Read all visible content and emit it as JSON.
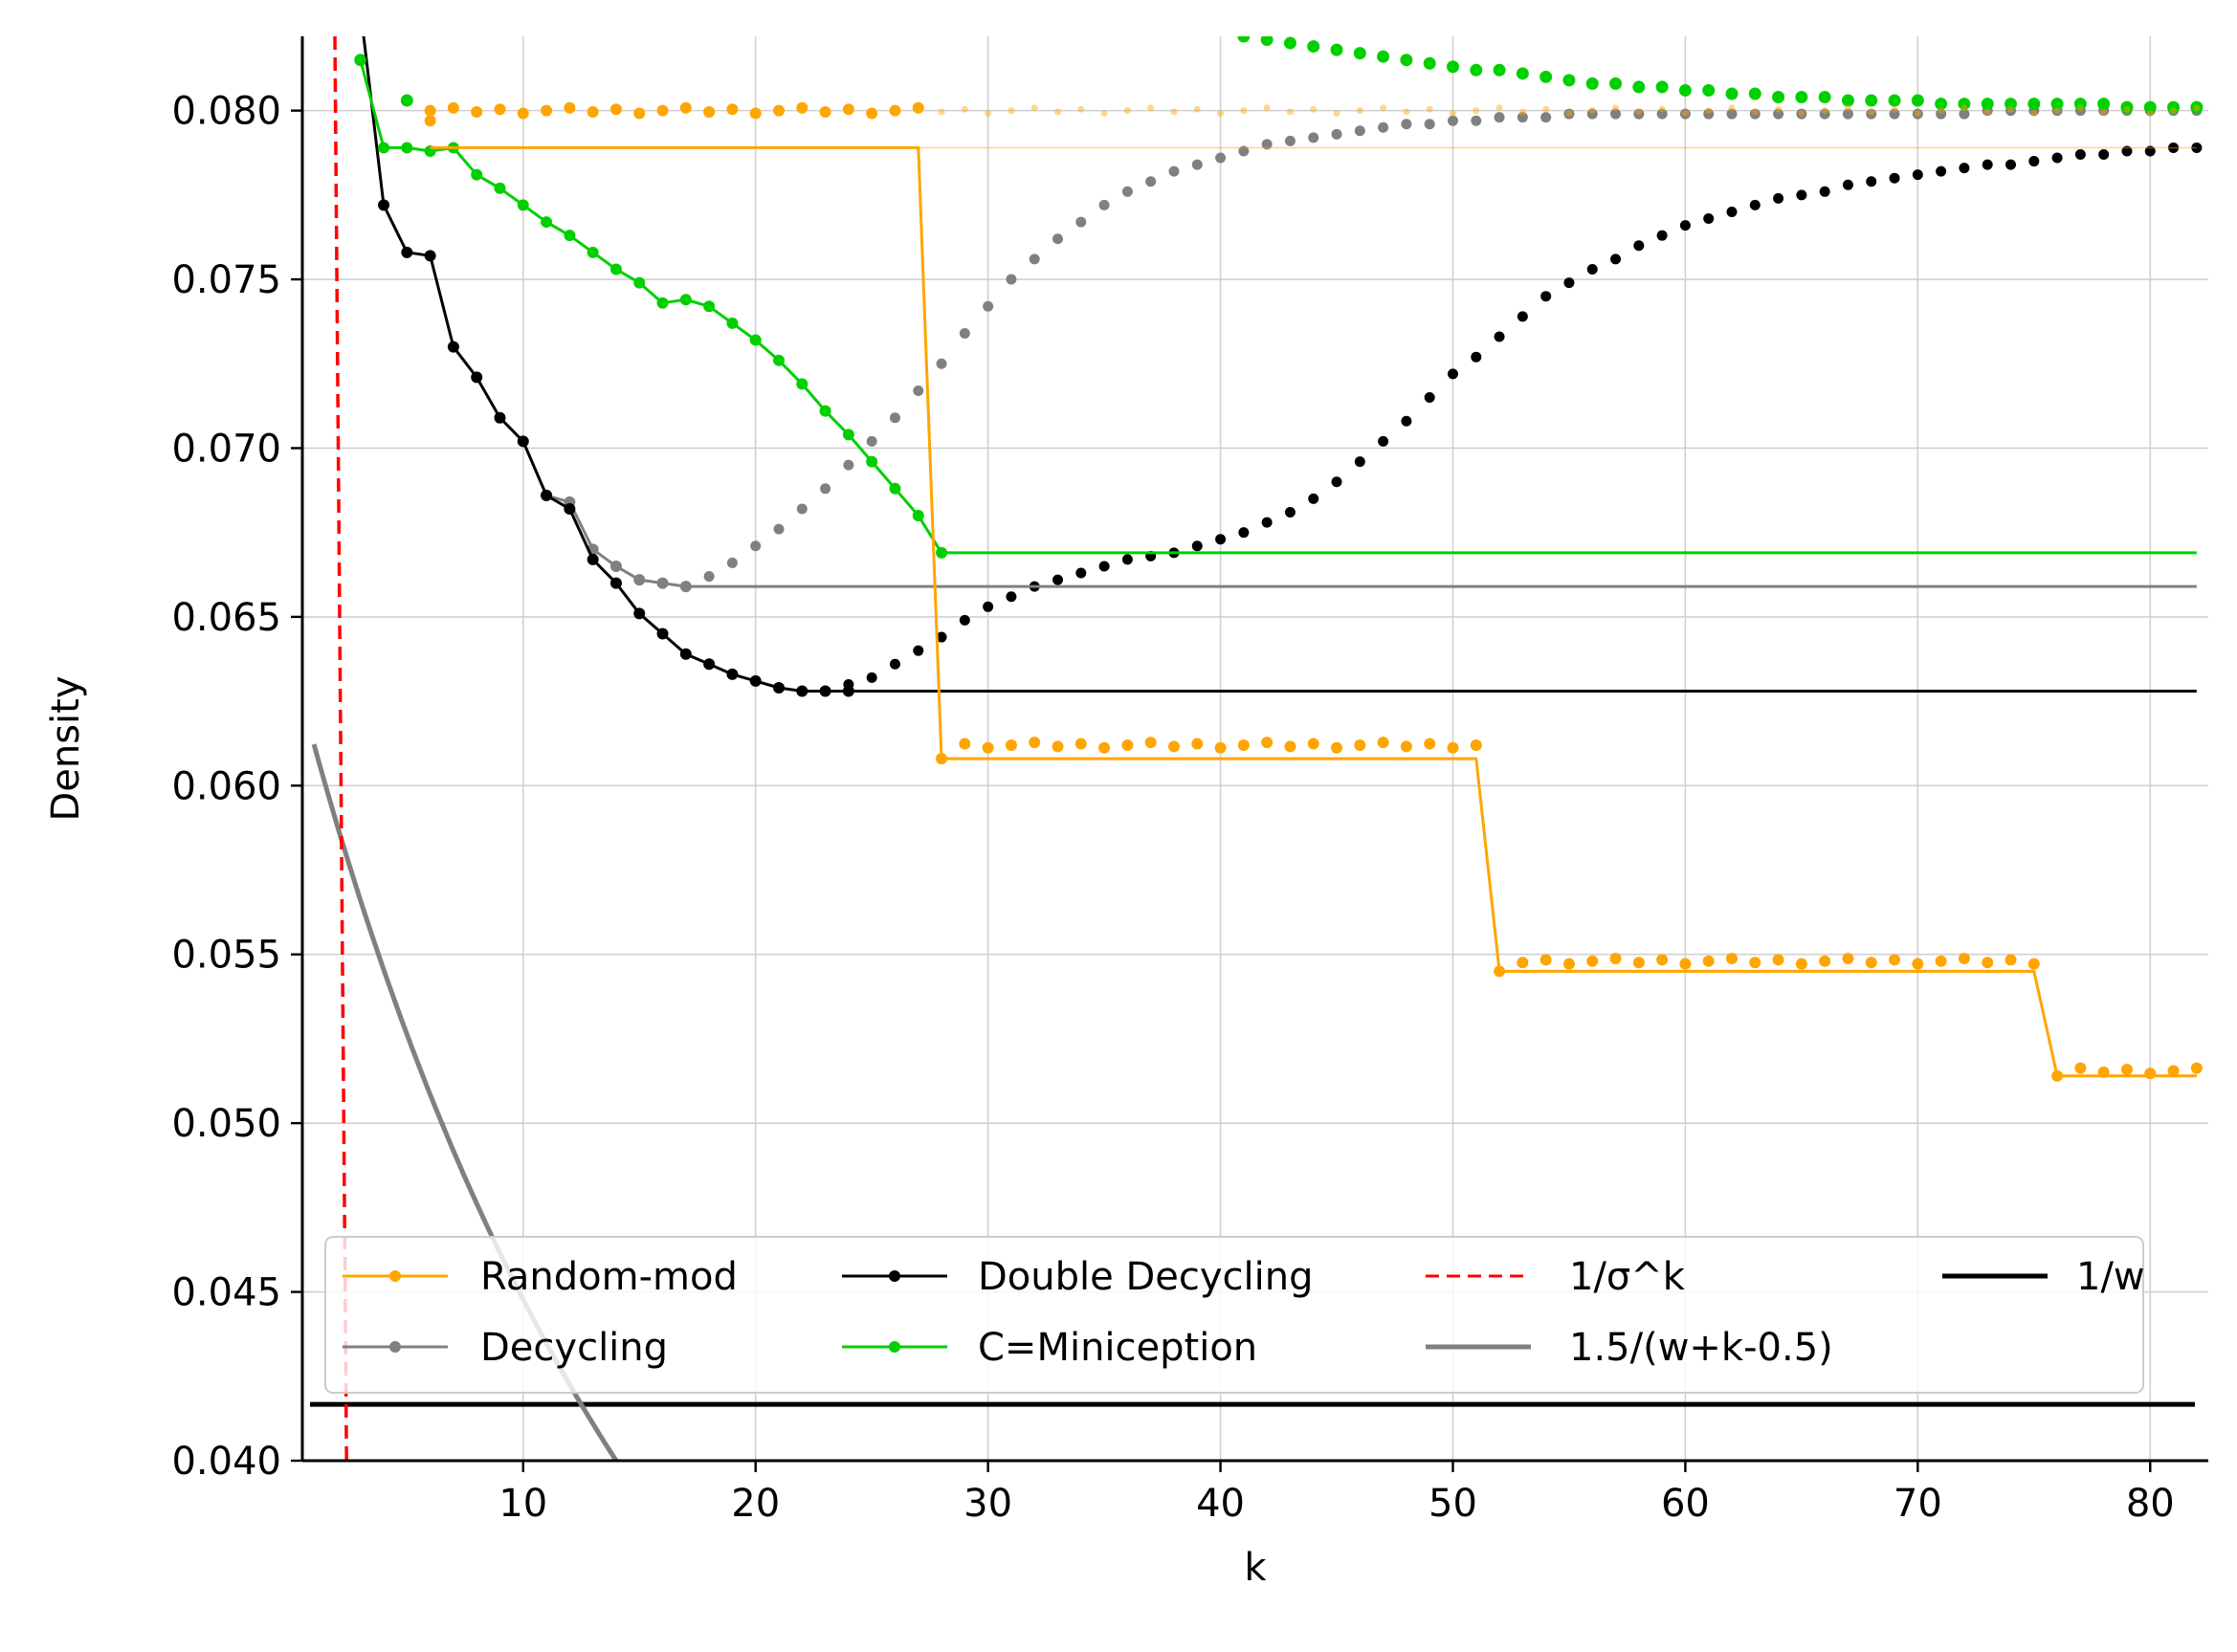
{
  "chart_data": {
    "type": "line",
    "xlabel": "k",
    "ylabel": "Density",
    "xlim": [
      0.5,
      82.5
    ],
    "ylim": [
      0.04,
      0.0822
    ],
    "xticks": [
      10,
      20,
      30,
      40,
      50,
      60,
      70,
      80
    ],
    "yticks": [
      "0.040",
      "0.045",
      "0.050",
      "0.055",
      "0.060",
      "0.065",
      "0.070",
      "0.075",
      "0.080"
    ],
    "grid": true,
    "legend_position": "lower center",
    "legend_columns": 4,
    "colors": {
      "random_mod": "#ffa500",
      "decycling": "#808080",
      "double_decycling": "#000000",
      "miniception": "#00d000",
      "sigma_bound": "#ff0000",
      "approx_bound": "#808080",
      "w_bound": "#000000"
    },
    "series": [
      {
        "name": "Random-mod",
        "key": "random_mod",
        "line_x": [
          6,
          27,
          28,
          51,
          52,
          75,
          76,
          82
        ],
        "line_y": [
          0.0789,
          0.0789,
          0.0608,
          0.0608,
          0.0545,
          0.0545,
          0.0514,
          0.0514
        ],
        "extend_to": 82,
        "points_x": [
          6,
          28,
          52,
          76
        ],
        "points_y": [
          0.0797,
          0.0608,
          0.0545,
          0.0514
        ],
        "dotted_runs": [
          {
            "x_start": 6,
            "x_end": 82,
            "y": 0.08,
            "fade_after": 27
          },
          {
            "x_start": 29,
            "x_end": 51,
            "y": 0.0612
          },
          {
            "x_start": 53,
            "x_end": 75,
            "y": 0.0548
          },
          {
            "x_start": 77,
            "x_end": 82,
            "y": 0.05155
          }
        ]
      },
      {
        "name": "Decycling",
        "key": "decycling",
        "line_x": [
          11,
          12,
          13,
          14,
          15,
          16,
          17
        ],
        "line_y": [
          0.0686,
          0.0684,
          0.067,
          0.0665,
          0.0661,
          0.066,
          0.0659
        ],
        "extend_to": 82,
        "extend_y": 0.0659,
        "dotted_x": [
          5,
          6,
          7,
          8,
          9,
          10,
          11,
          12,
          13,
          14,
          15,
          16,
          17,
          18,
          19,
          20,
          21,
          22,
          23,
          24,
          25,
          26,
          27,
          28,
          29,
          30,
          31,
          32,
          33,
          34,
          35,
          36,
          37,
          38,
          39,
          40,
          41,
          42,
          43,
          44,
          45,
          46,
          47,
          48,
          49,
          50,
          51,
          52,
          53,
          54,
          55,
          56,
          57,
          58,
          59,
          60,
          61,
          62,
          63,
          64,
          65,
          66,
          67,
          68,
          69,
          70,
          71,
          72,
          73,
          74,
          75,
          76,
          77,
          78,
          79,
          80,
          81,
          82
        ],
        "dotted_y": [
          0.0759,
          0.0757,
          0.073,
          0.0721,
          0.0709,
          0.0702,
          0.0686,
          0.0684,
          0.067,
          0.0665,
          0.0661,
          0.066,
          0.0659,
          0.0662,
          0.0666,
          0.0671,
          0.0676,
          0.0682,
          0.0688,
          0.0695,
          0.0702,
          0.0709,
          0.0717,
          0.0725,
          0.0734,
          0.0742,
          0.075,
          0.0756,
          0.0762,
          0.0767,
          0.0772,
          0.0776,
          0.0779,
          0.0782,
          0.0784,
          0.0786,
          0.0788,
          0.079,
          0.0791,
          0.0792,
          0.0793,
          0.0794,
          0.0795,
          0.0796,
          0.0796,
          0.0797,
          0.0797,
          0.0798,
          0.0798,
          0.0798,
          0.0799,
          0.0799,
          0.0799,
          0.0799,
          0.0799,
          0.0799,
          0.0799,
          0.0799,
          0.0799,
          0.0799,
          0.0799,
          0.0799,
          0.0799,
          0.0799,
          0.0799,
          0.0799,
          0.0799,
          0.0799,
          0.08,
          0.08,
          0.08,
          0.08,
          0.08,
          0.08,
          0.08,
          0.08,
          0.08,
          0.08
        ],
        "dotted_from": 17
      },
      {
        "name": "Double Decycling",
        "key": "double_decycling",
        "line_x": [
          3,
          4,
          5,
          6,
          7,
          8,
          9,
          10,
          11,
          12,
          13,
          14,
          15,
          16,
          17,
          18,
          19,
          20,
          21,
          22,
          23,
          24
        ],
        "line_y": [
          0.083,
          0.0772,
          0.0758,
          0.0757,
          0.073,
          0.0721,
          0.0709,
          0.0702,
          0.0686,
          0.0682,
          0.0667,
          0.066,
          0.0651,
          0.0645,
          0.0639,
          0.0636,
          0.0633,
          0.0631,
          0.0629,
          0.0628,
          0.0628,
          0.0628
        ],
        "extend_to": 82,
        "extend_y": 0.0628,
        "dotted_x": [
          24,
          25,
          26,
          27,
          28,
          29,
          30,
          31,
          32,
          33,
          34,
          35,
          36,
          37,
          38,
          39,
          40,
          41,
          42,
          43,
          44,
          45,
          46,
          47,
          48,
          49,
          50,
          51,
          52,
          53,
          54,
          55,
          56,
          57,
          58,
          59,
          60,
          61,
          62,
          63,
          64,
          65,
          66,
          67,
          68,
          69,
          70,
          71,
          72,
          73,
          74,
          75,
          76,
          77,
          78,
          79,
          80,
          81,
          82
        ],
        "dotted_y": [
          0.063,
          0.0632,
          0.0636,
          0.064,
          0.0644,
          0.0649,
          0.0653,
          0.0656,
          0.0659,
          0.0661,
          0.0663,
          0.0665,
          0.0667,
          0.0668,
          0.0669,
          0.0671,
          0.0673,
          0.0675,
          0.0678,
          0.0681,
          0.0685,
          0.069,
          0.0696,
          0.0702,
          0.0708,
          0.0715,
          0.0722,
          0.0727,
          0.0733,
          0.0739,
          0.0745,
          0.0749,
          0.0753,
          0.0756,
          0.076,
          0.0763,
          0.0766,
          0.0768,
          0.077,
          0.0772,
          0.0774,
          0.0775,
          0.0776,
          0.0778,
          0.0779,
          0.078,
          0.0781,
          0.0782,
          0.0783,
          0.0784,
          0.0784,
          0.0785,
          0.0786,
          0.0787,
          0.0787,
          0.0788,
          0.0788,
          0.0789,
          0.0789
        ]
      },
      {
        "name": "C=Miniception",
        "key": "miniception",
        "line_x": [
          3,
          4,
          5,
          6,
          7,
          8,
          9,
          10,
          11,
          12,
          13,
          14,
          15,
          16,
          17,
          18,
          19,
          20,
          21,
          22,
          23,
          24,
          25,
          26,
          27,
          28
        ],
        "line_y": [
          0.0815,
          0.0789,
          0.0789,
          0.0788,
          0.0789,
          0.0781,
          0.0777,
          0.0772,
          0.0767,
          0.0763,
          0.0758,
          0.0753,
          0.0749,
          0.0743,
          0.0744,
          0.0742,
          0.0737,
          0.0732,
          0.0726,
          0.0719,
          0.0711,
          0.0704,
          0.0696,
          0.0688,
          0.068,
          0.0669
        ],
        "extend_to": 82,
        "extend_y": 0.0669,
        "dotted_x": [
          3,
          5,
          41,
          42,
          43,
          44,
          45,
          46,
          47,
          48,
          49,
          50,
          51,
          52,
          53,
          54,
          55,
          56,
          57,
          58,
          59,
          60,
          61,
          62,
          63,
          64,
          65,
          66,
          67,
          68,
          69,
          70,
          71,
          72,
          73,
          74,
          75,
          76,
          77,
          78,
          79,
          80,
          81,
          82
        ],
        "dotted_y": [
          0.0815,
          0.0803,
          0.0822,
          0.0821,
          0.082,
          0.0819,
          0.0818,
          0.0817,
          0.0816,
          0.0815,
          0.0814,
          0.0813,
          0.0812,
          0.0812,
          0.0811,
          0.081,
          0.0809,
          0.0808,
          0.0808,
          0.0807,
          0.0807,
          0.0806,
          0.0806,
          0.0805,
          0.0805,
          0.0804,
          0.0804,
          0.0804,
          0.0803,
          0.0803,
          0.0803,
          0.0803,
          0.0802,
          0.0802,
          0.0802,
          0.0802,
          0.0802,
          0.0802,
          0.0802,
          0.0802,
          0.0801,
          0.0801,
          0.0801,
          0.0801
        ]
      },
      {
        "name": "1/σ^k",
        "key": "sigma_bound",
        "style": "dashed",
        "x": [
          1.9,
          2.4
        ],
        "y": [
          0.0822,
          0.04
        ]
      },
      {
        "name": "1.5/(w+k-0.5)",
        "key": "approx_bound",
        "style": "thick",
        "w": 24,
        "x_range": [
          1,
          14
        ]
      },
      {
        "name": "1/w",
        "key": "w_bound",
        "style": "thick",
        "y": 0.04167
      }
    ],
    "legend_labels": [
      "Random-mod",
      "Decycling",
      "Double Decycling",
      "C=Miniception",
      "1/σ^k",
      "1.5/(w+k-0.5)",
      "1/w"
    ]
  }
}
